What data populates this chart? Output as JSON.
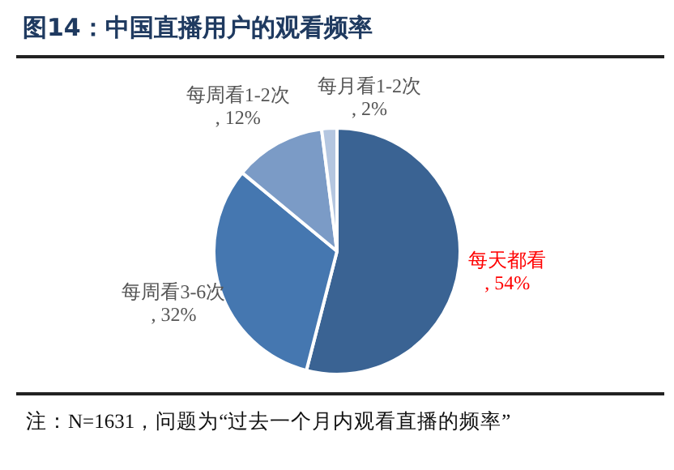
{
  "chart_data": {
    "type": "pie",
    "title": "图14：中国直播用户的观看频率",
    "categories": [
      "每天都看",
      "每周看3-6次",
      "每周看1-2次",
      "每月看1-2次"
    ],
    "values": [
      54,
      32,
      12,
      2
    ],
    "colors": [
      "#3a6393",
      "#4577b0",
      "#7b9bc6",
      "#b4c6e0"
    ],
    "value_labels": [
      ", 54%",
      ", 32%",
      ", 12%",
      ", 2%"
    ],
    "legend": false,
    "annotations": [
      "注：N=1631，问题为“过去一个月内观看直播的频率”"
    ]
  }
}
